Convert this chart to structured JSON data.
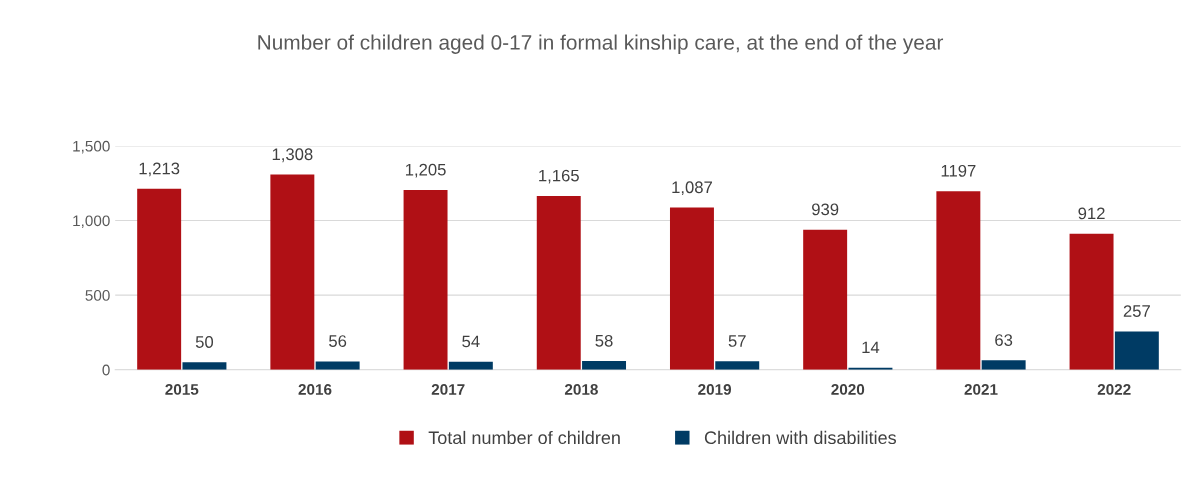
{
  "chart_data": {
    "type": "bar",
    "title": "Number of children aged 0-17 in formal kinship care, at the end of the year",
    "categories": [
      "2015",
      "2016",
      "2017",
      "2018",
      "2019",
      "2020",
      "2021",
      "2022"
    ],
    "series": [
      {
        "name": "Total number of children",
        "color": "#b01015",
        "values": [
          1213,
          1308,
          1205,
          1165,
          1087,
          939,
          1197,
          912
        ],
        "value_labels": [
          "1,213",
          "1,308",
          "1,205",
          "1,165",
          "1,087",
          "939",
          "1197",
          "912"
        ]
      },
      {
        "name": "Children with disabilities",
        "color": "#003b64",
        "values": [
          50,
          56,
          54,
          58,
          57,
          14,
          63,
          257
        ],
        "value_labels": [
          "50",
          "56",
          "54",
          "58",
          "57",
          "14",
          "63",
          "257"
        ]
      }
    ],
    "ylim": [
      0,
      1500
    ],
    "yticks": [
      0,
      {
        "value": 500,
        "label": "500"
      },
      {
        "value": 1000,
        "label": "1,000"
      },
      {
        "value": 1500,
        "label": "1,500"
      }
    ],
    "grid": "y",
    "legend": "bottom"
  }
}
